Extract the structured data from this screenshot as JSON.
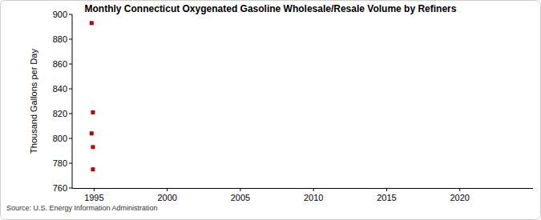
{
  "chart_data": {
    "type": "scatter",
    "title": "Monthly Connecticut Oxygenated Gasoline Wholesale/Resale Volume by Refiners",
    "y_label": "Thousand Gallons per Day",
    "source": "Source: U.S. Energy Information Administration",
    "x": [
      1994.92,
      1994.83,
      1994.92,
      1994.83,
      1994.92
    ],
    "values": [
      821,
      804,
      793,
      893,
      775
    ],
    "color": "#c00000",
    "marker": "square",
    "xlim": [
      1993.5,
      2025
    ],
    "xticks": [
      1995,
      2000,
      2005,
      2010,
      2015,
      2020
    ],
    "ylim": [
      760,
      900
    ],
    "yticks": [
      760,
      780,
      800,
      820,
      840,
      860,
      880,
      900
    ],
    "grid": false
  }
}
